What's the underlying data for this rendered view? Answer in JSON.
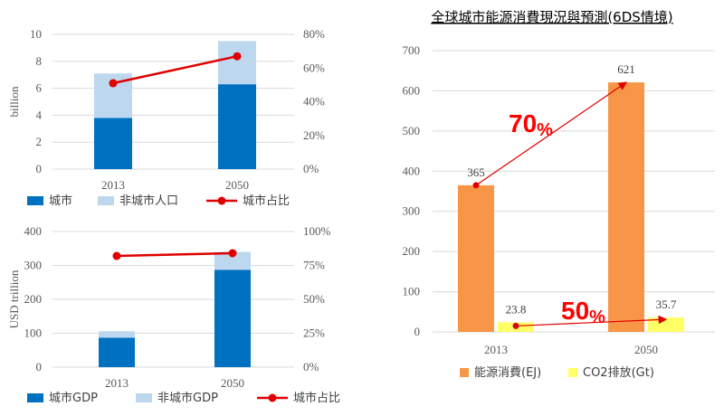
{
  "chart_data": [
    {
      "type": "bar",
      "categories": [
        "2013",
        "2050"
      ],
      "ylabel": "billion",
      "ylim": [
        0,
        10
      ],
      "y_ticks": [
        "0",
        "2",
        "4",
        "6",
        "8",
        "10"
      ],
      "y2lim": [
        0,
        80
      ],
      "y2_ticks": [
        "0%",
        "20%",
        "40%",
        "60%",
        "80%"
      ],
      "stacked": true,
      "series": [
        {
          "name": "城市",
          "kind": "bar",
          "values": [
            3.8,
            6.3
          ],
          "color": "#0070c0"
        },
        {
          "name": "非城市人口",
          "kind": "bar",
          "values": [
            3.3,
            3.2
          ],
          "color": "#bdd7ee"
        },
        {
          "name": "城市占比",
          "kind": "line",
          "axis": "right",
          "values": [
            51,
            67
          ],
          "color": "#e00000"
        }
      ],
      "legend_position": "bottom"
    },
    {
      "type": "bar",
      "categories": [
        "2013",
        "2050"
      ],
      "ylabel": "USD  trillion",
      "ylim": [
        0,
        400
      ],
      "y_ticks": [
        "0",
        "100",
        "200",
        "300",
        "400"
      ],
      "y2lim": [
        0,
        100
      ],
      "y2_ticks": [
        "0%",
        "25%",
        "50%",
        "75%",
        "100%"
      ],
      "stacked": true,
      "series": [
        {
          "name": "城市GDP",
          "kind": "bar",
          "values": [
            87,
            287
          ],
          "color": "#0070c0"
        },
        {
          "name": "非城市GDP",
          "kind": "bar",
          "values": [
            19,
            53
          ],
          "color": "#bdd7ee"
        },
        {
          "name": "城市占比",
          "kind": "line",
          "axis": "right",
          "values": [
            82,
            84
          ],
          "color": "#e00000"
        }
      ],
      "legend_position": "bottom"
    },
    {
      "type": "bar",
      "title": "全球城市能源消費現況與預測(6DS情境)",
      "categories": [
        "2013",
        "2050"
      ],
      "ylim": [
        0,
        700
      ],
      "y_ticks": [
        "0",
        "100",
        "200",
        "300",
        "400",
        "500",
        "600",
        "700"
      ],
      "series": [
        {
          "name": "能源消費(EJ)",
          "values": [
            365,
            621
          ],
          "labels": [
            "365",
            "621"
          ],
          "color": "#f79646"
        },
        {
          "name": "CO2排放(Gt)",
          "values": [
            23.8,
            35.7
          ],
          "labels": [
            "23.8",
            "35.7"
          ],
          "color": "#ffff66"
        }
      ],
      "annotations": [
        {
          "big": "70",
          "small": "%"
        },
        {
          "big": "50",
          "small": "%"
        }
      ],
      "legend_position": "bottom"
    }
  ]
}
